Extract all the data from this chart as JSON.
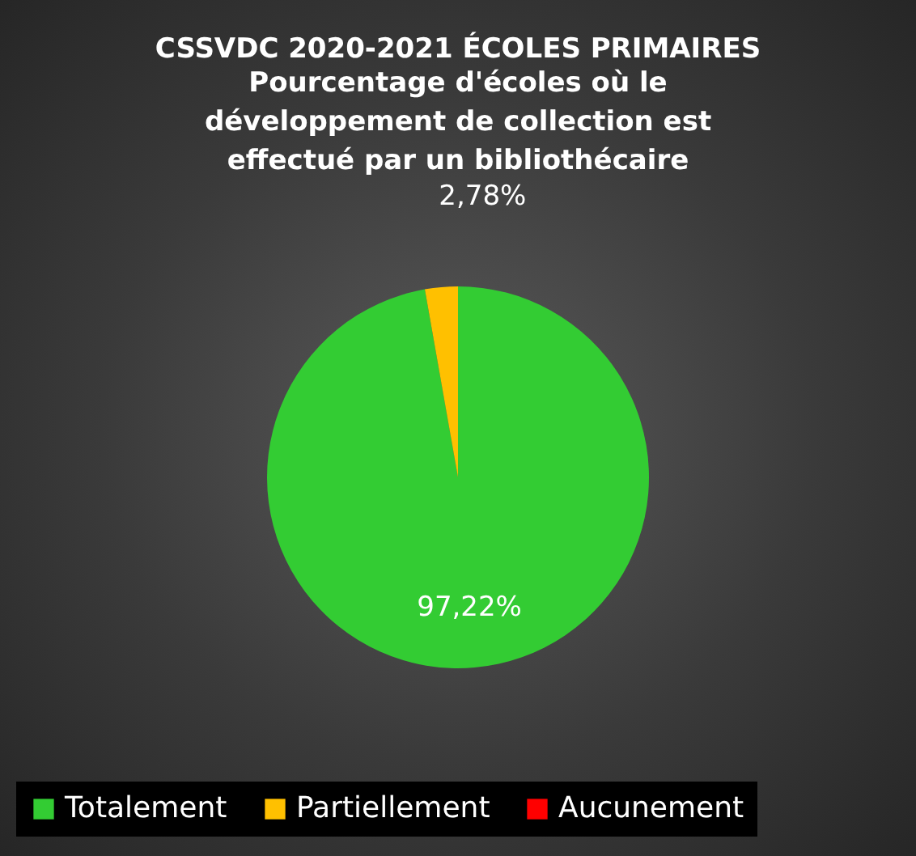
{
  "chart_data": {
    "type": "pie",
    "title": "CSSVDC 2020-2021 ÉCOLES PRIMAIRES",
    "subtitle": "Pourcentage d'écoles où le développement de collection est effectué par un bibliothécaire",
    "categories": [
      "Totalement",
      "Partiellement",
      "Aucunement"
    ],
    "values": [
      97.22,
      2.78,
      0
    ],
    "colors": [
      "#33cc33",
      "#ffc000",
      "#ff0000"
    ],
    "value_labels": [
      "97,22%",
      "2,78%",
      null
    ],
    "legend": "bottom"
  }
}
